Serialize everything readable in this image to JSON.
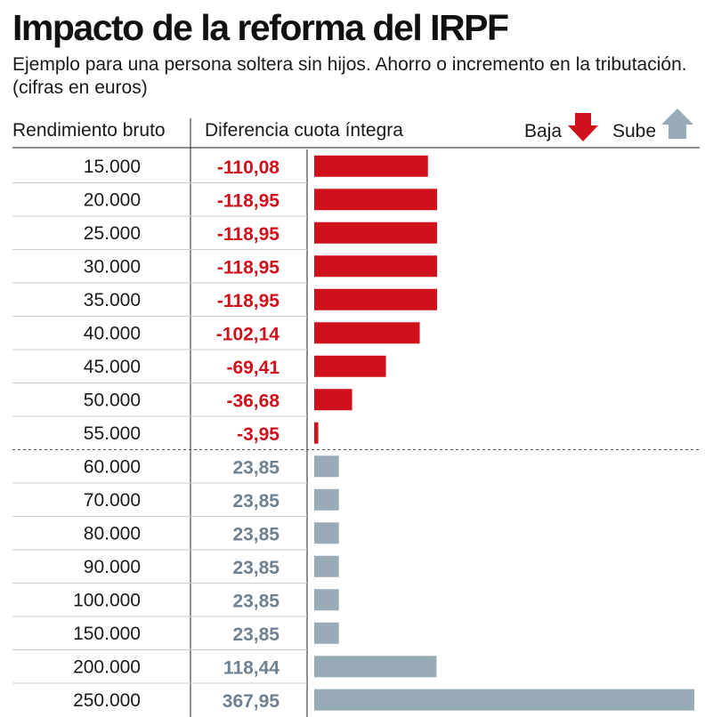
{
  "header": {
    "title": "Impacto de la reforma del IRPF",
    "subtitle": "Ejemplo para una persona soltera sin hijos. Ahorro o incremento en la tributación. (cifras en euros)",
    "col_left": "Rendimiento bruto",
    "col_mid": "Diferencia cuota íntegra"
  },
  "legend": {
    "down_label": "Baja",
    "up_label": "Sube",
    "down_icon": "arrow-down-icon",
    "up_icon": "arrow-up-icon"
  },
  "colors": {
    "negative": "#d0101b",
    "positive": "#9aabb8",
    "positive_text": "#6f8190",
    "divider": "#cccccc",
    "axis": "#222222"
  },
  "chart_data": {
    "type": "bar",
    "orientation": "horizontal",
    "categories": [
      "15.000",
      "20.000",
      "25.000",
      "30.000",
      "35.000",
      "40.000",
      "45.000",
      "50.000",
      "55.000",
      "60.000",
      "70.000",
      "80.000",
      "90.000",
      "100.000",
      "150.000",
      "200.000",
      "250.000"
    ],
    "values": [
      -110.08,
      -118.95,
      -118.95,
      -118.95,
      -118.95,
      -102.14,
      -69.41,
      -36.68,
      -3.95,
      23.85,
      23.85,
      23.85,
      23.85,
      23.85,
      23.85,
      118.44,
      367.95
    ],
    "value_labels": [
      "-110,08",
      "-118,95",
      "-118,95",
      "-118,95",
      "-118,95",
      "-102,14",
      "-69,41",
      "-36,68",
      "-3,95",
      "23,85",
      "23,85",
      "23,85",
      "23,85",
      "23,85",
      "23,85",
      "118,44",
      "367,95"
    ],
    "bar_length": "absolute value",
    "title": "Impacto de la reforma del IRPF",
    "xlabel": "Diferencia cuota íntegra",
    "ylabel": "Rendimiento bruto",
    "grid": false
  }
}
